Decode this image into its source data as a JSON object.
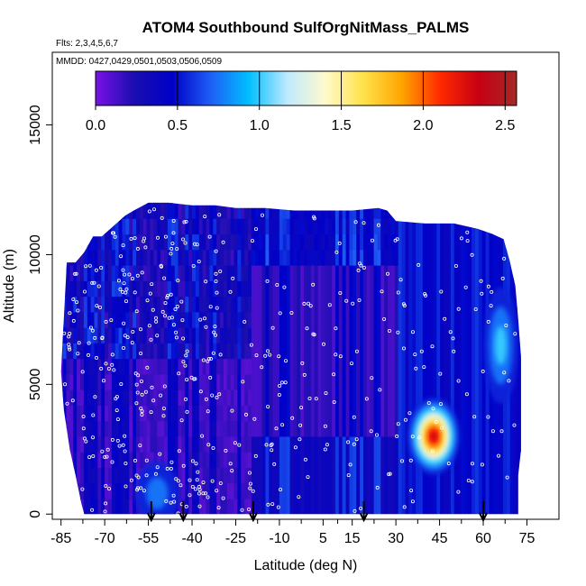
{
  "chart_data": {
    "type": "heatmap",
    "title": "ATOM4 Southbound SulfOrgNitMass_PALMS",
    "flights_label": "Flts: 2,3,4,5,6,7",
    "dates_label": "MMDD: 0427,0429,0501,0503,0506,0509",
    "xlabel": "Latitude (deg N)",
    "ylabel": "Altitude (m)",
    "xlim": [
      -88,
      86
    ],
    "ylim": [
      -200,
      17800
    ],
    "x_ticks": [
      -85,
      -70,
      -55,
      -40,
      -25,
      -10,
      5,
      15,
      30,
      45,
      60,
      75
    ],
    "x_tick_labels": [
      "-85",
      "-70",
      "-55",
      "-40",
      "-25",
      "-10",
      "5",
      "15",
      "30",
      "45",
      "60",
      "75"
    ],
    "y_ticks": [
      0,
      5000,
      10000,
      15000
    ],
    "y_tick_labels": [
      "0",
      "5000",
      "10000",
      "15000"
    ],
    "colorbar": {
      "min": 0,
      "max": 2.57,
      "ticks": [
        0,
        0.5,
        1.0,
        1.5,
        2.0,
        2.5
      ],
      "tick_labels": [
        "0.0",
        "0.5",
        "1.0",
        "1.5",
        "2.0",
        "2.5"
      ],
      "colors": [
        "#7a12e6",
        "#1a0eb0",
        "#0000c8",
        "#1e5ef5",
        "#00bfff",
        "#bfe9ff",
        "#fffacd",
        "#ffe24a",
        "#ffa500",
        "#ff2a00",
        "#c80014",
        "#a62828"
      ]
    },
    "profile_markers_lat": [
      -54,
      -43,
      -19,
      19,
      60
    ],
    "altitude_profile_top": [
      [
        -85,
        5500
      ],
      [
        -83,
        9700
      ],
      [
        -80,
        9700
      ],
      [
        -77,
        10100
      ],
      [
        -74,
        10700
      ],
      [
        -71,
        10700
      ],
      [
        -67,
        11100
      ],
      [
        -63,
        11500
      ],
      [
        -60,
        11700
      ],
      [
        -55,
        12000
      ],
      [
        -48,
        12000
      ],
      [
        -40,
        11900
      ],
      [
        -32,
        11900
      ],
      [
        -25,
        11800
      ],
      [
        -15,
        11800
      ],
      [
        -5,
        11700
      ],
      [
        5,
        11700
      ],
      [
        15,
        11700
      ],
      [
        24,
        11800
      ],
      [
        27,
        11700
      ],
      [
        30,
        11300
      ],
      [
        40,
        11200
      ],
      [
        50,
        11200
      ],
      [
        58,
        11000
      ],
      [
        63,
        10800
      ],
      [
        67,
        10600
      ],
      [
        69,
        9800
      ],
      [
        71,
        8800
      ],
      [
        72,
        7500
      ],
      [
        73,
        6000
      ],
      [
        73,
        4000
      ],
      [
        73,
        2500
      ],
      [
        72,
        1500
      ],
      [
        72,
        0
      ]
    ],
    "altitude_profile_bottom": [
      [
        -85,
        5500
      ],
      [
        -84,
        4000
      ],
      [
        -82,
        2500
      ],
      [
        -80,
        1500
      ],
      [
        -78,
        400
      ],
      [
        -77,
        0
      ]
    ],
    "high_concentration_regions": [
      {
        "lat_range": [
          36,
          54
        ],
        "alt_range": [
          1500,
          4500
        ],
        "peak_lat": 43,
        "peak_alt": 3000,
        "peak_value": 2.45
      },
      {
        "lat_range": [
          60,
          72
        ],
        "alt_range": [
          4500,
          9000
        ],
        "peak_lat": 66,
        "peak_alt": 6500,
        "peak_value": 1.1
      },
      {
        "lat_range": [
          -60,
          -45
        ],
        "alt_range": [
          0,
          2500
        ],
        "peak_lat": -52,
        "peak_alt": 800,
        "peak_value": 0.9
      }
    ]
  }
}
